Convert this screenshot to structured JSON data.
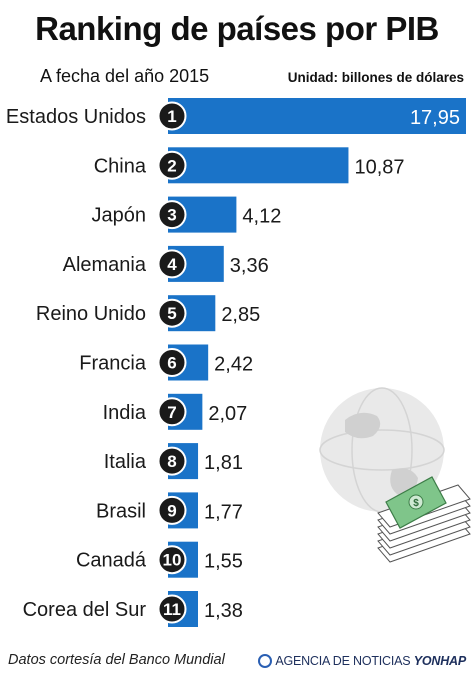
{
  "title": "Ranking de países por PIB",
  "subtitle": "A fecha del año 2015",
  "unit_label": "Unidad: billones de dólares",
  "source": "Datos cortesía del Banco Mundial",
  "agency": {
    "name": "AGENCIA DE NOTICIAS",
    "brand": "YONHAP"
  },
  "colors": {
    "bar": "#1a73c8",
    "rank_circle": "#1a1a1a",
    "text": "#1a1a1a"
  },
  "icons": [
    "globe-icon",
    "money-stack-icon"
  ],
  "chart_data": {
    "type": "bar",
    "orientation": "horizontal",
    "categories": [
      "Estados Unidos",
      "China",
      "Japón",
      "Alemania",
      "Reino Unido",
      "Francia",
      "India",
      "Italia",
      "Brasil",
      "Canadá",
      "Corea del Sur"
    ],
    "ranks": [
      "1",
      "2",
      "3",
      "4",
      "5",
      "6",
      "7",
      "8",
      "9",
      "10",
      "11"
    ],
    "values": [
      17.95,
      10.87,
      4.12,
      3.36,
      2.85,
      2.42,
      2.07,
      1.81,
      1.77,
      1.55,
      1.38
    ],
    "value_labels": [
      "17,95",
      "10,87",
      "4,12",
      "3,36",
      "2,85",
      "2,42",
      "2,07",
      "1,81",
      "1,77",
      "1,55",
      "1,38"
    ],
    "title": "Ranking de países por PIB",
    "xlabel": "",
    "ylabel": "",
    "grid": false
  }
}
